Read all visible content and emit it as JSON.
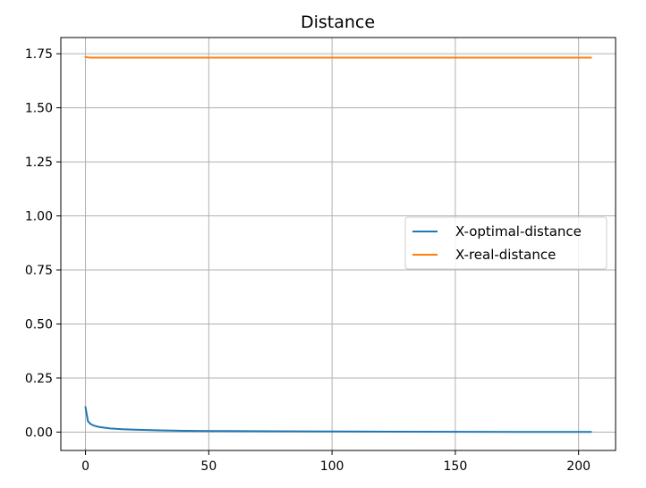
{
  "chart_data": {
    "type": "line",
    "title": "Distance",
    "xlabel": "",
    "ylabel": "",
    "xlim": [
      -10,
      215
    ],
    "ylim": [
      -0.085,
      1.825
    ],
    "x_ticks": [
      0,
      50,
      100,
      150,
      200
    ],
    "y_ticks": [
      0.0,
      0.25,
      0.5,
      0.75,
      1.0,
      1.25,
      1.5,
      1.75
    ],
    "y_tick_labels": [
      "0.00",
      "0.25",
      "0.50",
      "0.75",
      "1.00",
      "1.25",
      "1.50",
      "1.75"
    ],
    "grid": true,
    "legend_position": "center-right",
    "series": [
      {
        "name": "X-optimal-distance",
        "color": "#1f77b4",
        "x": [
          0,
          1,
          2,
          3,
          4,
          5,
          6,
          8,
          10,
          15,
          20,
          30,
          40,
          50,
          75,
          100,
          125,
          150,
          175,
          205
        ],
        "y": [
          0.115,
          0.05,
          0.038,
          0.032,
          0.028,
          0.025,
          0.023,
          0.02,
          0.017,
          0.013,
          0.011,
          0.008,
          0.006,
          0.005,
          0.004,
          0.003,
          0.002,
          0.0015,
          0.001,
          0.001
        ]
      },
      {
        "name": "X-real-distance",
        "color": "#ff7f0e",
        "x": [
          0,
          1,
          2,
          3,
          5,
          10,
          50,
          100,
          150,
          205
        ],
        "y": [
          1.735,
          1.733,
          1.732,
          1.732,
          1.732,
          1.732,
          1.732,
          1.732,
          1.732,
          1.732
        ]
      }
    ]
  }
}
